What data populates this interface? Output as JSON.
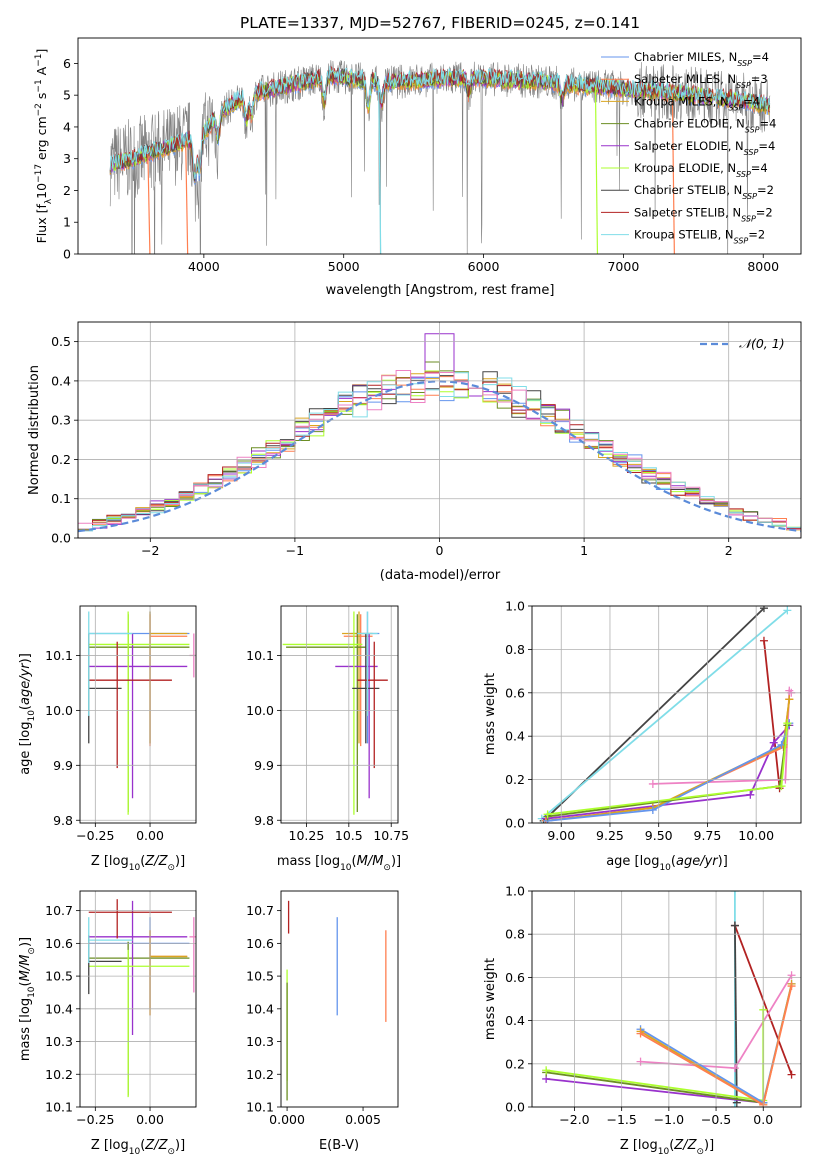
{
  "figure": {
    "title": "PLATE=1337, MJD=52767, FIBERID=0245, z=0.141"
  },
  "colors": {
    "chabrier_miles": "#6495ED",
    "salpeter_miles": "#FF7F50",
    "kroupa_miles": "#DAA520",
    "chabrier_elodie": "#6B8E23",
    "salpeter_elodie": "#9932CC",
    "kroupa_elodie": "#ADFF2F",
    "chabrier_stelib": "#444444",
    "salpeter_stelib": "#B22222",
    "kroupa_stelib": "#80DDE8",
    "data": "#808080",
    "pink": "#EE82C4"
  },
  "labels": {
    "spec_xlabel": "wavelength [Angstrom, rest frame]",
    "spec_ylabel": "Flux [f_λ 10^-17 erg cm^-2 s^-1 A^-1]",
    "hist_xlabel": "(data-model)/error",
    "hist_ylabel": "Normed distribution",
    "hist_legend": "𝒩(0, 1)",
    "p3_xlabel": "Z [log10(Z/Z⊙)]",
    "p3_ylabel": "age  [log10(age/yr)]",
    "p4_xlabel": "mass [log10(M/M⊙)]",
    "p5_xlabel": "age  [log10(age/yr)]",
    "p5_ylabel": "mass weight",
    "p6_xlabel": "Z [log10(Z/Z⊙)]",
    "p6_ylabel": "mass [log10(M/M⊙)]",
    "p7_xlabel": "E(B-V)",
    "p8_xlabel": "Z [log10(Z/Z⊙)]",
    "p8_ylabel": "mass weight"
  },
  "legend": [
    {
      "label": "Chabrier MILES, N_SSP=4",
      "color": "#6495ED"
    },
    {
      "label": "Salpeter MILES, N_SSP=3",
      "color": "#FF7F50"
    },
    {
      "label": "Kroupa MILES, N_SSP=4",
      "color": "#DAA520"
    },
    {
      "label": "Chabrier ELODIE, N_SSP=4",
      "color": "#6B8E23"
    },
    {
      "label": "Salpeter ELODIE, N_SSP=4",
      "color": "#9932CC"
    },
    {
      "label": "Kroupa ELODIE, N_SSP=4",
      "color": "#ADFF2F"
    },
    {
      "label": "Chabrier STELIB, N_SSP=2",
      "color": "#444444"
    },
    {
      "label": "Salpeter STELIB, N_SSP=2",
      "color": "#B22222"
    },
    {
      "label": "Kroupa STELIB, N_SSP=2",
      "color": "#80DDE8"
    }
  ],
  "chart_data": [
    {
      "id": "spectrum",
      "type": "line",
      "title": "PLATE=1337, MJD=52767, FIBERID=0245, z=0.141",
      "xlabel": "wavelength [Angstrom, rest frame]",
      "ylabel": "Flux [f_λ 10^-17 erg cm^-2 s^-1 A^-1]",
      "xlim": [
        3100,
        8270
      ],
      "ylim": [
        0,
        6.8
      ],
      "xticks": [
        4000,
        5000,
        6000,
        7000,
        8000
      ],
      "yticks": [
        0,
        1,
        2,
        3,
        4,
        5,
        6
      ],
      "grid": false,
      "legend_position": "top-right",
      "continuum_x": [
        3330,
        3500,
        3700,
        3900,
        4000,
        4100,
        4300,
        4500,
        4700,
        4900,
        5100,
        5300,
        5500,
        5700,
        5900,
        6100,
        6300,
        6500,
        6700,
        6900,
        7100,
        7300,
        7500,
        7700,
        7900,
        8050
      ],
      "continuum_y": [
        2.8,
        3.0,
        3.3,
        3.6,
        3.8,
        4.4,
        5.0,
        5.2,
        5.4,
        5.6,
        5.5,
        5.4,
        5.45,
        5.5,
        5.55,
        5.5,
        5.45,
        5.4,
        5.3,
        5.25,
        5.15,
        5.1,
        5.0,
        4.9,
        4.8,
        4.65
      ]
    },
    {
      "id": "residuals",
      "type": "bar",
      "xlabel": "(data-model)/error",
      "ylabel": "Normed distribution",
      "xlim": [
        -2.5,
        2.5
      ],
      "ylim": [
        0,
        0.55
      ],
      "xticks": [
        -2,
        -1,
        0,
        1,
        2
      ],
      "yticks": [
        0.0,
        0.1,
        0.2,
        0.3,
        0.4,
        0.5
      ],
      "grid": true,
      "legend_position": "top-right",
      "bin_width": 0.1,
      "bin_start": -2.5
    },
    {
      "id": "age_vs_Z",
      "type": "scatter",
      "xlabel": "Z [log10(Z/Z⊙)]",
      "ylabel": "age  [log10(age/yr)]",
      "xlim": [
        -0.32,
        0.21
      ],
      "ylim": [
        9.795,
        10.19
      ],
      "xticks": [
        -0.25,
        0.0
      ],
      "xticklabels": [
        "−0.25",
        "0.00"
      ],
      "yticks": [
        9.8,
        9.9,
        10.0,
        10.1
      ],
      "grid": true,
      "points": [
        {
          "color": "#6495ED",
          "x": 0.0,
          "xerr": [
            0.28,
            0.18
          ],
          "y": 10.14,
          "yerr": [
            0.2,
            0.04
          ]
        },
        {
          "color": "#FF7F50",
          "x": 0.0,
          "xerr": [
            0.0,
            0.17
          ],
          "y": 10.135,
          "yerr": [
            0.2,
            0.04
          ]
        },
        {
          "color": "#DAA520",
          "x": 0.0,
          "xerr": [
            0.0,
            0.17
          ],
          "y": 10.14,
          "yerr": [
            0.2,
            0.04
          ]
        },
        {
          "color": "#6B8E23",
          "x": -0.1,
          "xerr": [
            0.18,
            0.28
          ],
          "y": 10.115,
          "yerr": [
            0.3,
            0.06
          ]
        },
        {
          "color": "#9932CC",
          "x": -0.08,
          "xerr": [
            0.2,
            0.25
          ],
          "y": 10.08,
          "yerr": [
            0.24,
            0.06
          ]
        },
        {
          "color": "#ADFF2F",
          "x": -0.1,
          "xerr": [
            0.18,
            0.28
          ],
          "y": 10.12,
          "yerr": [
            0.31,
            0.06
          ]
        },
        {
          "color": "#444444",
          "x": -0.28,
          "xerr": [
            0.0,
            0.15
          ],
          "y": 10.04,
          "yerr": [
            0.1,
            0.1
          ]
        },
        {
          "color": "#B22222",
          "x": -0.15,
          "xerr": [
            0.13,
            0.25
          ],
          "y": 10.055,
          "yerr": [
            0.16,
            0.07
          ]
        },
        {
          "color": "#80DDE8",
          "x": -0.28,
          "xerr": [
            0.0,
            0.2
          ],
          "y": 10.14,
          "yerr": [
            0.15,
            0.04
          ]
        },
        {
          "color": "#EE82C4",
          "x": 0.2,
          "xerr": [
            0.02,
            0.01
          ],
          "y": 10.1,
          "yerr": [
            0.04,
            0.04
          ]
        }
      ]
    },
    {
      "id": "age_vs_mass",
      "type": "scatter",
      "xlabel": "mass [log10(M/M⊙)]",
      "ylabel": "",
      "xlim": [
        10.1,
        10.79
      ],
      "ylim": [
        9.795,
        10.19
      ],
      "xticks": [
        10.25,
        10.5,
        10.75
      ],
      "yticks": [
        9.8,
        9.9,
        10.0,
        10.1
      ],
      "grid": true,
      "points": [
        {
          "color": "#6495ED",
          "x": 10.61,
          "xerr": [
            0.1,
            0.07
          ],
          "y": 10.14,
          "yerr": [
            0.2,
            0.04
          ]
        },
        {
          "color": "#FF7F50",
          "x": 10.57,
          "xerr": [
            0.1,
            0.07
          ],
          "y": 10.135,
          "yerr": [
            0.2,
            0.04
          ]
        },
        {
          "color": "#DAA520",
          "x": 10.56,
          "xerr": [
            0.1,
            0.08
          ],
          "y": 10.14,
          "yerr": [
            0.2,
            0.04
          ]
        },
        {
          "color": "#6B8E23",
          "x": 10.55,
          "xerr": [
            0.42,
            0.05
          ],
          "y": 10.115,
          "yerr": [
            0.3,
            0.06
          ]
        },
        {
          "color": "#9932CC",
          "x": 10.62,
          "xerr": [
            0.2,
            0.05
          ],
          "y": 10.08,
          "yerr": [
            0.24,
            0.06
          ]
        },
        {
          "color": "#ADFF2F",
          "x": 10.53,
          "xerr": [
            0.42,
            0.05
          ],
          "y": 10.12,
          "yerr": [
            0.31,
            0.06
          ]
        },
        {
          "color": "#444444",
          "x": 10.6,
          "xerr": [
            0.08,
            0.08
          ],
          "y": 10.04,
          "yerr": [
            0.1,
            0.1
          ]
        },
        {
          "color": "#B22222",
          "x": 10.65,
          "xerr": [
            0.1,
            0.08
          ],
          "y": 10.055,
          "yerr": [
            0.16,
            0.07
          ]
        },
        {
          "color": "#80DDE8",
          "x": 10.61,
          "xerr": [
            0.06,
            0.06
          ],
          "y": 10.14,
          "yerr": [
            0.15,
            0.04
          ]
        }
      ]
    },
    {
      "id": "mass_weight_vs_age",
      "type": "line",
      "xlabel": "age  [log10(age/yr)]",
      "ylabel": "mass weight",
      "xlim": [
        8.85,
        10.23
      ],
      "ylim": [
        0,
        1
      ],
      "xticks": [
        9.0,
        9.25,
        9.5,
        9.75,
        10.0
      ],
      "xticklabels": [
        "9.00",
        "9.25",
        "9.50",
        "9.75",
        "10.00"
      ],
      "yticks": [
        0.0,
        0.2,
        0.4,
        0.6,
        0.8,
        1.0
      ],
      "grid": true,
      "series": [
        {
          "color": "#444444",
          "x": [
            8.91,
            10.04
          ],
          "y": [
            0.01,
            0.99
          ]
        },
        {
          "color": "#80DDE8",
          "x": [
            8.9,
            10.16
          ],
          "y": [
            0.02,
            0.98
          ]
        },
        {
          "color": "#B22222",
          "x": [
            10.04,
            10.12
          ],
          "y": [
            0.84,
            0.16
          ]
        },
        {
          "color": "#EE82C4",
          "x": [
            9.47,
            10.15,
            10.17,
            10.18
          ],
          "y": [
            0.18,
            0.2,
            0.61,
            0.6
          ]
        },
        {
          "color": "#9932CC",
          "x": [
            8.92,
            9.97,
            10.09,
            10.17
          ],
          "y": [
            0.02,
            0.13,
            0.37,
            0.45
          ]
        },
        {
          "color": "#FF7F50",
          "x": [
            8.92,
            9.47,
            10.14,
            10.17
          ],
          "y": [
            0.01,
            0.07,
            0.35,
            0.57
          ]
        },
        {
          "color": "#DAA520",
          "x": [
            8.93,
            9.47,
            10.14,
            10.17
          ],
          "y": [
            0.01,
            0.07,
            0.36,
            0.57
          ]
        },
        {
          "color": "#6495ED",
          "x": [
            8.93,
            9.47,
            10.13,
            10.17
          ],
          "y": [
            0.01,
            0.06,
            0.36,
            0.46
          ]
        },
        {
          "color": "#6B8E23",
          "x": [
            8.93,
            10.12,
            10.16
          ],
          "y": [
            0.03,
            0.17,
            0.45
          ]
        },
        {
          "color": "#ADFF2F",
          "x": [
            8.93,
            10.13,
            10.16
          ],
          "y": [
            0.04,
            0.17,
            0.46
          ]
        }
      ]
    },
    {
      "id": "mass_vs_Z",
      "type": "scatter",
      "xlabel": "Z [log10(Z/Z⊙)]",
      "ylabel": "mass [log10(M/M⊙)]",
      "xlim": [
        -0.32,
        0.21
      ],
      "ylim": [
        10.1,
        10.76
      ],
      "xticks": [
        -0.25,
        0.0
      ],
      "xticklabels": [
        "−0.25",
        "0.00"
      ],
      "yticks": [
        10.1,
        10.2,
        10.3,
        10.4,
        10.5,
        10.6,
        10.7
      ],
      "grid": true,
      "points": [
        {
          "color": "#6495ED",
          "x": 0.0,
          "xerr": [
            0.28,
            0.18
          ],
          "y": 10.6,
          "yerr": [
            0.2,
            0.08
          ]
        },
        {
          "color": "#FF7F50",
          "x": 0.0,
          "xerr": [
            0.0,
            0.17
          ],
          "y": 10.56,
          "yerr": [
            0.18,
            0.08
          ]
        },
        {
          "color": "#DAA520",
          "x": 0.0,
          "xerr": [
            0.0,
            0.17
          ],
          "y": 10.56,
          "yerr": [
            0.18,
            0.08
          ]
        },
        {
          "color": "#6B8E23",
          "x": -0.1,
          "xerr": [
            0.18,
            0.28
          ],
          "y": 10.555,
          "yerr": [
            0.42,
            0.05
          ]
        },
        {
          "color": "#9932CC",
          "x": -0.08,
          "xerr": [
            0.2,
            0.25
          ],
          "y": 10.62,
          "yerr": [
            0.3,
            0.11
          ]
        },
        {
          "color": "#ADFF2F",
          "x": -0.1,
          "xerr": [
            0.18,
            0.28
          ],
          "y": 10.53,
          "yerr": [
            0.4,
            0.05
          ]
        },
        {
          "color": "#444444",
          "x": -0.28,
          "xerr": [
            0.0,
            0.15
          ],
          "y": 10.545,
          "yerr": [
            0.1,
            0.08
          ]
        },
        {
          "color": "#B22222",
          "x": -0.15,
          "xerr": [
            0.13,
            0.25
          ],
          "y": 10.695,
          "yerr": [
            0.08,
            0.04
          ]
        },
        {
          "color": "#80DDE8",
          "x": -0.28,
          "xerr": [
            0.0,
            0.2
          ],
          "y": 10.61,
          "yerr": [
            0.07,
            0.07
          ]
        },
        {
          "color": "#EE82C4",
          "x": 0.2,
          "xerr": [
            0.02,
            0.01
          ],
          "y": 10.62,
          "yerr": [
            0.17,
            0.06
          ]
        }
      ]
    },
    {
      "id": "mass_vs_ebv",
      "type": "scatter",
      "xlabel": "E(B-V)",
      "ylabel": "",
      "xlim": [
        -0.0004,
        0.0073
      ],
      "ylim": [
        10.1,
        10.76
      ],
      "xticks": [
        0.0,
        0.005
      ],
      "xticklabels": [
        "0.000",
        "0.005"
      ],
      "yticks": [
        10.1,
        10.2,
        10.3,
        10.4,
        10.5,
        10.6,
        10.7
      ],
      "grid": false,
      "points": [
        {
          "color": "#6495ED",
          "x": 0.0033,
          "xerr": [
            0,
            0
          ],
          "y": 10.53,
          "yerr": [
            0.15,
            0.15
          ]
        },
        {
          "color": "#FF7F50",
          "x": 0.0065,
          "xerr": [
            0,
            0
          ],
          "y": 10.5,
          "yerr": [
            0.14,
            0.14
          ]
        },
        {
          "color": "#B22222",
          "x": 0.0001,
          "xerr": [
            0,
            0
          ],
          "y": 10.68,
          "yerr": [
            0.05,
            0.05
          ]
        },
        {
          "color": "#ADFF2F",
          "x": 0.0,
          "xerr": [
            0,
            0
          ],
          "y": 10.35,
          "yerr": [
            0.17,
            0.17
          ]
        },
        {
          "color": "#6B8E23",
          "x": 0.0,
          "xerr": [
            0,
            0
          ],
          "y": 10.3,
          "yerr": [
            0.18,
            0.18
          ]
        }
      ]
    },
    {
      "id": "mass_weight_vs_Z",
      "type": "line",
      "xlabel": "Z [log10(Z/Z⊙)]",
      "ylabel": "mass weight",
      "xlim": [
        -2.45,
        0.4
      ],
      "ylim": [
        0,
        1
      ],
      "xticks": [
        -2.0,
        -1.5,
        -1.0,
        -0.5,
        0.0
      ],
      "xticklabels": [
        "−2.0",
        "−1.5",
        "−1.0",
        "−0.5",
        "0.0"
      ],
      "yticks": [
        0.0,
        0.2,
        0.4,
        0.6,
        0.8,
        1.0
      ],
      "grid": true,
      "series": [
        {
          "color": "#80DDE8",
          "x": [
            -0.3,
            -0.3
          ],
          "y": [
            0.0,
            1.0
          ]
        },
        {
          "color": "#B22222",
          "x": [
            -0.3,
            0.3
          ],
          "y": [
            0.84,
            0.15
          ]
        },
        {
          "color": "#444444",
          "x": [
            -0.3,
            -0.28
          ],
          "y": [
            0.84,
            0.02
          ]
        },
        {
          "color": "#EE82C4",
          "x": [
            -1.3,
            -0.3,
            0.3
          ],
          "y": [
            0.21,
            0.18,
            0.61
          ]
        },
        {
          "color": "#9932CC",
          "x": [
            -2.3,
            0.0
          ],
          "y": [
            0.13,
            0.02
          ]
        },
        {
          "color": "#6B8E23",
          "x": [
            -2.3,
            0.0
          ],
          "y": [
            0.16,
            0.02
          ]
        },
        {
          "color": "#ADFF2F",
          "x": [
            -2.3,
            0.0,
            0.0
          ],
          "y": [
            0.17,
            0.03,
            0.45
          ]
        },
        {
          "color": "#6495ED",
          "x": [
            -1.3,
            0.0,
            0.3
          ],
          "y": [
            0.36,
            0.02,
            0.57
          ]
        },
        {
          "color": "#DAA520",
          "x": [
            -1.3,
            0.0,
            0.3
          ],
          "y": [
            0.35,
            0.01,
            0.57
          ]
        },
        {
          "color": "#FF7F50",
          "x": [
            -1.3,
            0.0,
            0.3
          ],
          "y": [
            0.34,
            0.01,
            0.56
          ]
        }
      ]
    }
  ]
}
